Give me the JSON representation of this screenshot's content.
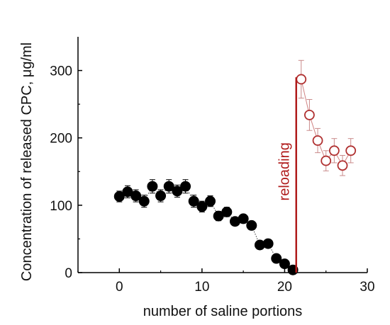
{
  "chart_data": {
    "type": "scatter",
    "title": "",
    "xlabel": "number of saline portions",
    "ylabel": "Concentration of released CPC, μg/ml",
    "xlim": [
      -5,
      30
    ],
    "ylim": [
      0,
      350
    ],
    "xticks": [
      0,
      10,
      20,
      30
    ],
    "yticks": [
      0,
      100,
      200,
      300
    ],
    "grid": false,
    "series": [
      {
        "color": "#000000",
        "filled": true,
        "x": [
          0,
          1,
          2,
          3,
          4,
          5,
          6,
          7,
          8,
          9,
          10,
          11,
          12,
          13,
          14,
          15,
          16,
          17,
          18,
          19,
          20,
          21
        ],
        "y": [
          113,
          120,
          114,
          106,
          128,
          114,
          128,
          121,
          128,
          106,
          98,
          106,
          84,
          90,
          76,
          80,
          70,
          41,
          43,
          21,
          13,
          4
        ],
        "err": [
          8,
          9,
          9,
          9,
          10,
          9,
          10,
          9,
          10,
          9,
          8,
          8,
          7,
          7,
          6,
          6,
          5,
          4,
          4,
          3,
          3,
          2
        ]
      },
      {
        "color": "#b03030",
        "filled": false,
        "x": [
          22,
          23,
          24,
          25,
          26,
          27,
          28
        ],
        "y": [
          287,
          234,
          196,
          166,
          181,
          159,
          181
        ],
        "err": [
          28,
          23,
          18,
          15,
          18,
          15,
          18
        ]
      }
    ],
    "annotations": [
      {
        "type": "vline",
        "x": 21.4,
        "y0": 0,
        "y1": 290,
        "color": "#b01c1c",
        "label": "reloading"
      }
    ]
  }
}
